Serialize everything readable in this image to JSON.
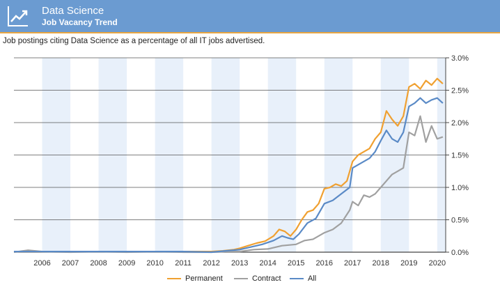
{
  "header": {
    "title": "Data Science",
    "subtitle": "Job Vacancy Trend",
    "icon": "trend-chart-icon",
    "bg_color": "#6b9bd1",
    "accent_color": "#e8a542"
  },
  "description": "Job postings citing Data Science as a percentage of all IT jobs advertised.",
  "legend": {
    "permanent": "Permanent",
    "contract": "Contract",
    "all": "All"
  },
  "chart_data": {
    "type": "line",
    "ylim": [
      0,
      3.0
    ],
    "y_ticks": [
      "0.0%",
      "0.5%",
      "1.0%",
      "1.5%",
      "2.0%",
      "2.5%",
      "3.0%"
    ],
    "x_ticks": [
      "2006",
      "2007",
      "2008",
      "2009",
      "2010",
      "2011",
      "2012",
      "2013",
      "2014",
      "2015",
      "2016",
      "2017",
      "2018",
      "2019",
      "2020"
    ],
    "xlim": [
      2005.0,
      2020.3
    ],
    "grid": true,
    "legend_position": "bottom",
    "series": [
      {
        "name": "Permanent",
        "color": "#f0a030",
        "points": [
          [
            2005.0,
            0.01
          ],
          [
            2005.5,
            0.01
          ],
          [
            2006.0,
            0.01
          ],
          [
            2007.0,
            0.01
          ],
          [
            2008.0,
            0.01
          ],
          [
            2009.0,
            0.01
          ],
          [
            2010.0,
            0.01
          ],
          [
            2011.0,
            0.01
          ],
          [
            2012.0,
            0.01
          ],
          [
            2012.4,
            0.02
          ],
          [
            2012.8,
            0.04
          ],
          [
            2013.0,
            0.06
          ],
          [
            2013.3,
            0.1
          ],
          [
            2013.6,
            0.14
          ],
          [
            2013.9,
            0.17
          ],
          [
            2014.2,
            0.25
          ],
          [
            2014.4,
            0.35
          ],
          [
            2014.6,
            0.32
          ],
          [
            2014.8,
            0.25
          ],
          [
            2015.0,
            0.35
          ],
          [
            2015.2,
            0.5
          ],
          [
            2015.4,
            0.62
          ],
          [
            2015.6,
            0.65
          ],
          [
            2015.8,
            0.75
          ],
          [
            2016.0,
            0.98
          ],
          [
            2016.2,
            1.0
          ],
          [
            2016.4,
            1.05
          ],
          [
            2016.6,
            1.02
          ],
          [
            2016.8,
            1.1
          ],
          [
            2017.0,
            1.4
          ],
          [
            2017.2,
            1.5
          ],
          [
            2017.4,
            1.55
          ],
          [
            2017.6,
            1.6
          ],
          [
            2017.8,
            1.75
          ],
          [
            2018.0,
            1.85
          ],
          [
            2018.2,
            2.18
          ],
          [
            2018.4,
            2.05
          ],
          [
            2018.6,
            1.95
          ],
          [
            2018.8,
            2.1
          ],
          [
            2019.0,
            2.55
          ],
          [
            2019.2,
            2.6
          ],
          [
            2019.4,
            2.52
          ],
          [
            2019.6,
            2.65
          ],
          [
            2019.8,
            2.58
          ],
          [
            2020.0,
            2.68
          ],
          [
            2020.2,
            2.6
          ]
        ]
      },
      {
        "name": "Contract",
        "color": "#a0a0a0",
        "points": [
          [
            2005.0,
            0.0
          ],
          [
            2005.5,
            0.03
          ],
          [
            2006.0,
            0.01
          ],
          [
            2007.0,
            0.0
          ],
          [
            2008.0,
            0.01
          ],
          [
            2009.0,
            0.0
          ],
          [
            2010.0,
            0.01
          ],
          [
            2011.0,
            0.0
          ],
          [
            2012.0,
            0.0
          ],
          [
            2012.5,
            0.01
          ],
          [
            2013.0,
            0.01
          ],
          [
            2013.5,
            0.04
          ],
          [
            2014.0,
            0.05
          ],
          [
            2014.5,
            0.1
          ],
          [
            2015.0,
            0.12
          ],
          [
            2015.3,
            0.18
          ],
          [
            2015.6,
            0.2
          ],
          [
            2016.0,
            0.3
          ],
          [
            2016.3,
            0.35
          ],
          [
            2016.6,
            0.45
          ],
          [
            2016.9,
            0.65
          ],
          [
            2017.0,
            0.78
          ],
          [
            2017.2,
            0.72
          ],
          [
            2017.4,
            0.88
          ],
          [
            2017.6,
            0.85
          ],
          [
            2017.8,
            0.9
          ],
          [
            2018.0,
            1.0
          ],
          [
            2018.2,
            1.1
          ],
          [
            2018.4,
            1.2
          ],
          [
            2018.6,
            1.25
          ],
          [
            2018.8,
            1.3
          ],
          [
            2019.0,
            1.85
          ],
          [
            2019.2,
            1.8
          ],
          [
            2019.4,
            2.1
          ],
          [
            2019.6,
            1.7
          ],
          [
            2019.8,
            1.95
          ],
          [
            2020.0,
            1.75
          ],
          [
            2020.2,
            1.78
          ]
        ]
      },
      {
        "name": "All",
        "color": "#5a8ac6",
        "points": [
          [
            2005.0,
            0.01
          ],
          [
            2005.5,
            0.01
          ],
          [
            2006.0,
            0.01
          ],
          [
            2007.0,
            0.01
          ],
          [
            2008.0,
            0.01
          ],
          [
            2009.0,
            0.01
          ],
          [
            2010.0,
            0.01
          ],
          [
            2011.0,
            0.01
          ],
          [
            2012.0,
            0.0
          ],
          [
            2012.5,
            0.02
          ],
          [
            2013.0,
            0.04
          ],
          [
            2013.4,
            0.08
          ],
          [
            2013.8,
            0.12
          ],
          [
            2014.2,
            0.18
          ],
          [
            2014.5,
            0.25
          ],
          [
            2014.7,
            0.22
          ],
          [
            2014.9,
            0.2
          ],
          [
            2015.1,
            0.28
          ],
          [
            2015.4,
            0.45
          ],
          [
            2015.7,
            0.52
          ],
          [
            2016.0,
            0.75
          ],
          [
            2016.3,
            0.8
          ],
          [
            2016.6,
            0.9
          ],
          [
            2016.9,
            1.0
          ],
          [
            2017.0,
            1.3
          ],
          [
            2017.2,
            1.35
          ],
          [
            2017.4,
            1.4
          ],
          [
            2017.6,
            1.45
          ],
          [
            2017.8,
            1.55
          ],
          [
            2018.0,
            1.72
          ],
          [
            2018.2,
            1.88
          ],
          [
            2018.4,
            1.75
          ],
          [
            2018.6,
            1.7
          ],
          [
            2018.8,
            1.85
          ],
          [
            2019.0,
            2.25
          ],
          [
            2019.2,
            2.3
          ],
          [
            2019.4,
            2.38
          ],
          [
            2019.6,
            2.3
          ],
          [
            2019.8,
            2.35
          ],
          [
            2020.0,
            2.38
          ],
          [
            2020.2,
            2.3
          ]
        ]
      }
    ]
  }
}
